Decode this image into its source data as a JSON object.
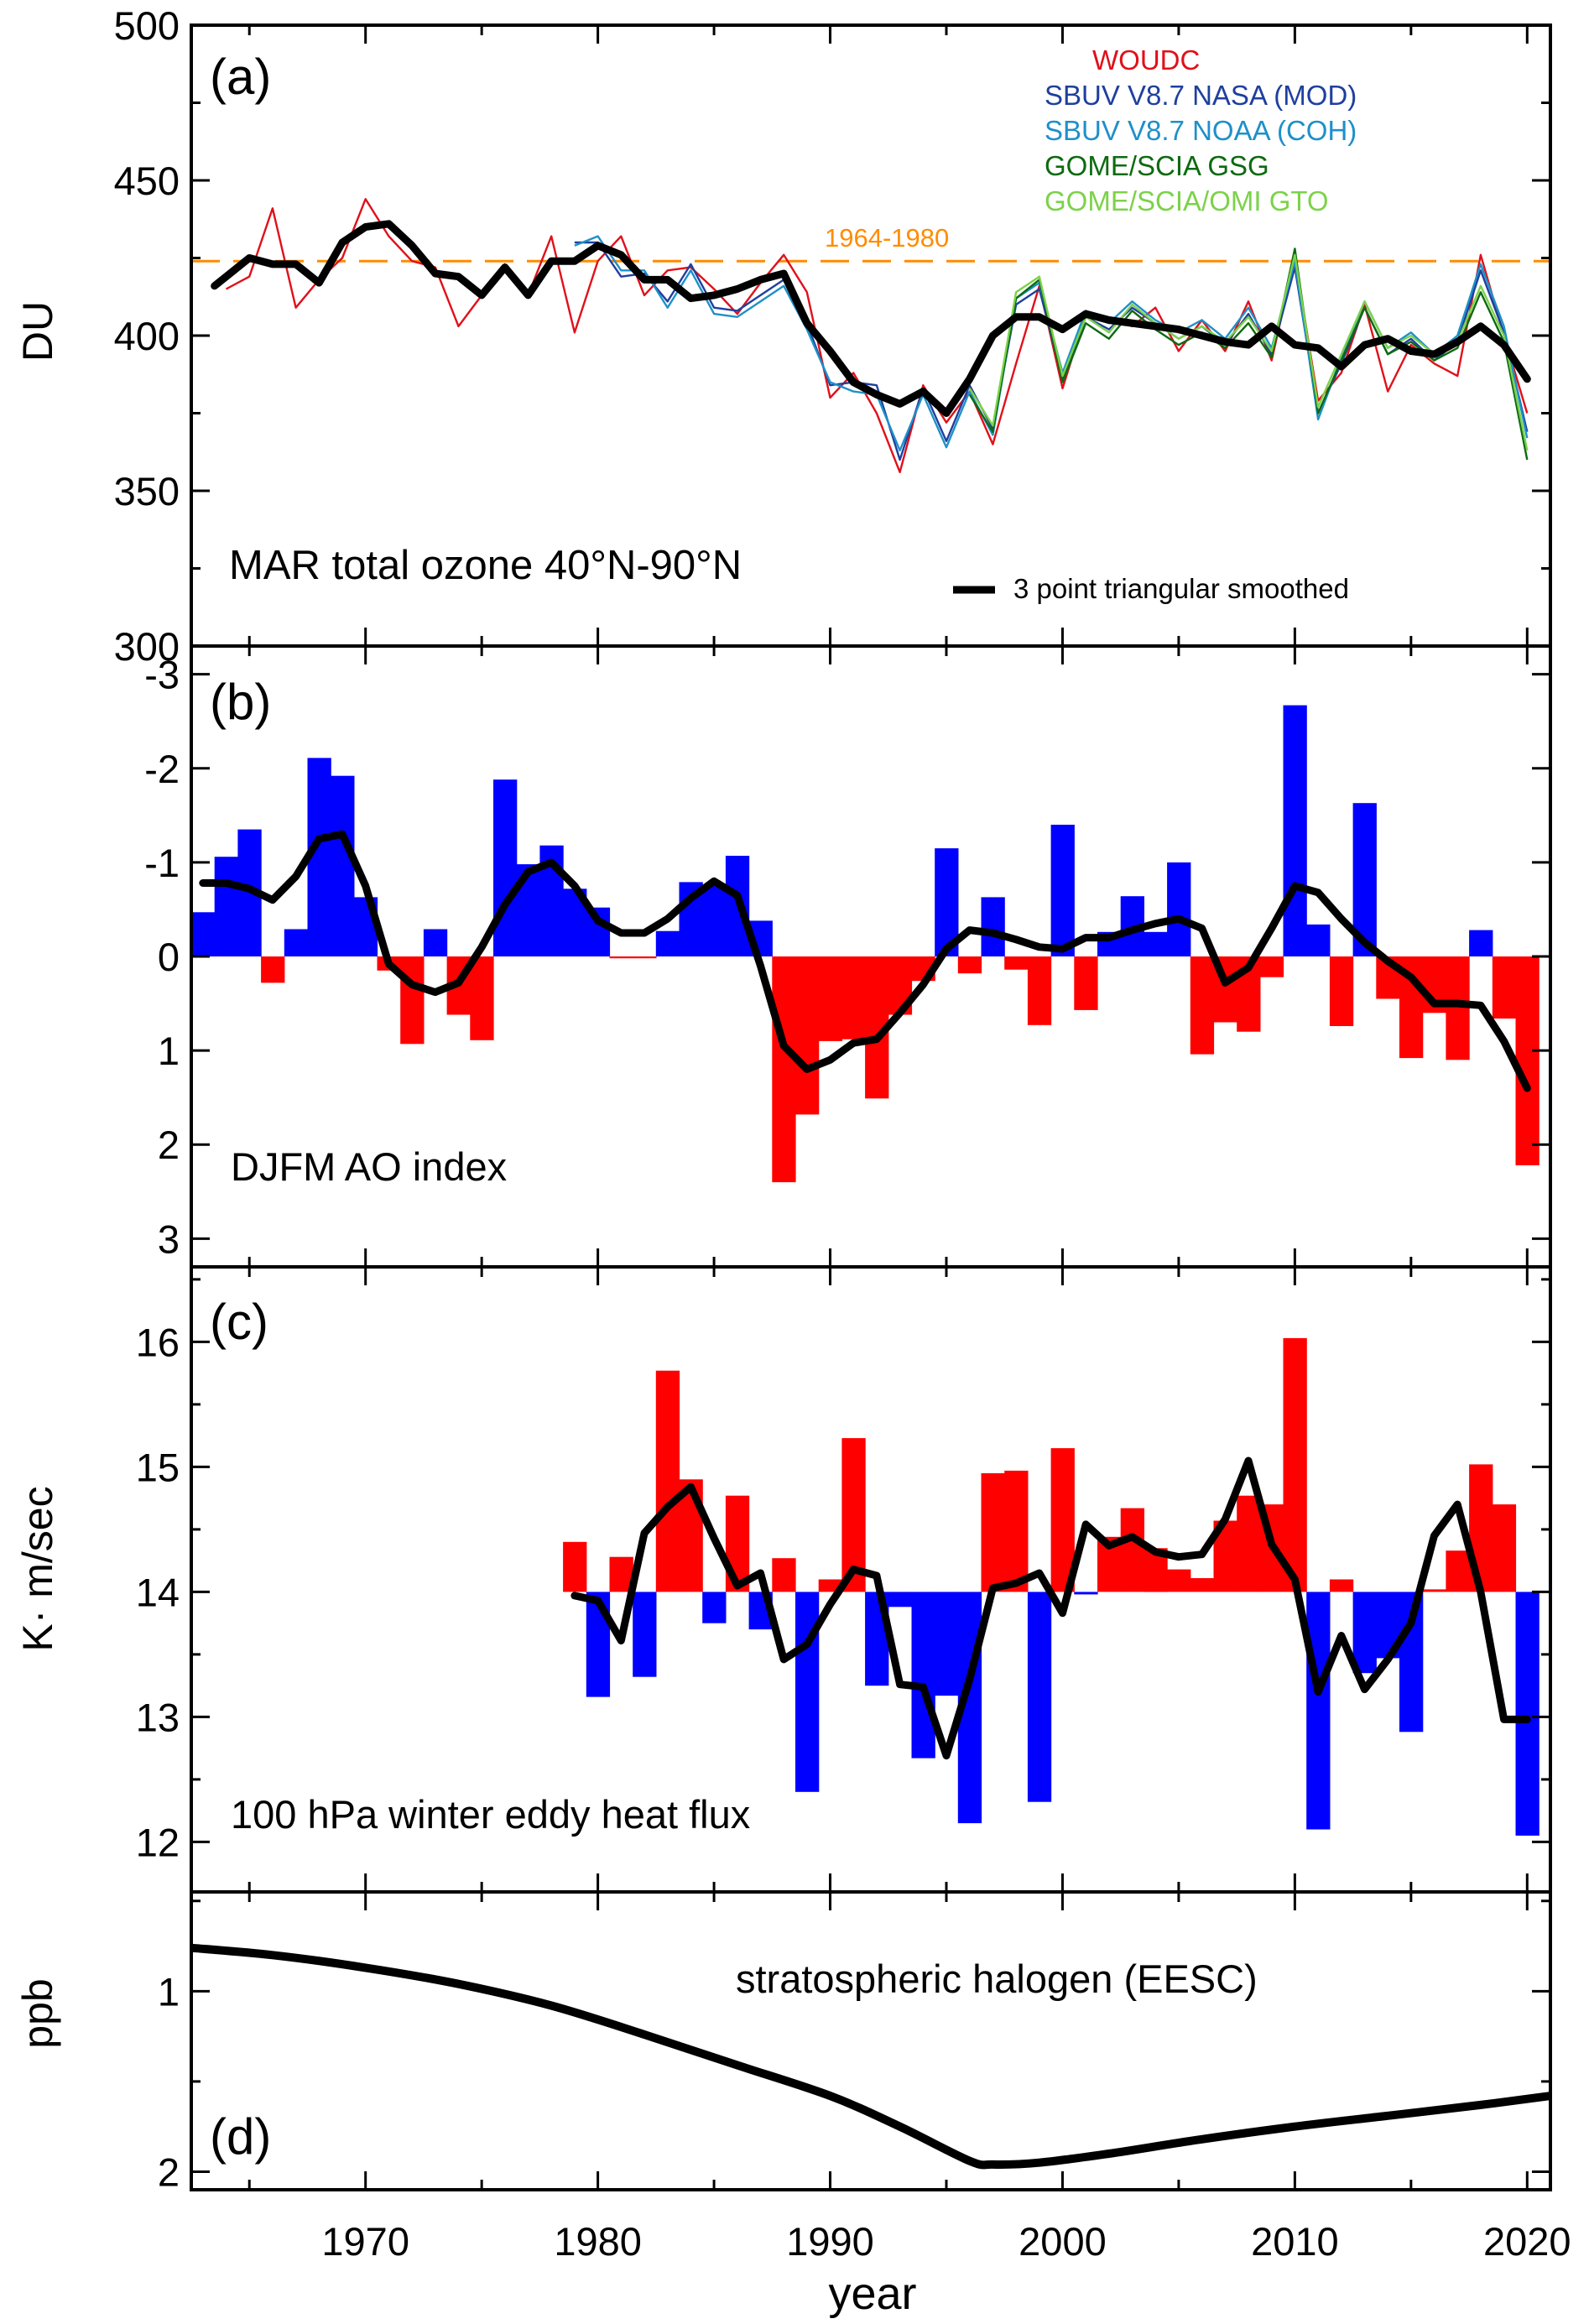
{
  "figure": {
    "xlabel": "year",
    "xlim": [
      1962.5,
      2021
    ],
    "xticks": [
      1970,
      1980,
      1990,
      2000,
      2010,
      2020
    ],
    "colors": {
      "woudc": "#e0101a",
      "sbuv_nasa": "#1f3f9e",
      "sbuv_noaa": "#1e90c8",
      "gsg": "#0d6a10",
      "gto": "#7cd24a",
      "baseline": "#ff8c00",
      "positive_bar": "#ff0000",
      "negative_bar": "#0000ff",
      "smoothed": "#000000"
    }
  },
  "chart_data": [
    {
      "panel": "(a)",
      "type": "line",
      "title": "MAR total ozone  40°N-90°N",
      "ylabel": "DU",
      "ylim": [
        300,
        500
      ],
      "yticks": [
        300,
        350,
        400,
        450,
        500
      ],
      "baseline": {
        "label": "1964-1980",
        "value": 424
      },
      "smooth_label": "3 point triangular smoothed",
      "series": [
        {
          "name": "WOUDC",
          "color": "woudc",
          "x": [
            1964,
            1965,
            1966,
            1967,
            1968,
            1969,
            1970,
            1971,
            1972,
            1973,
            1974,
            1975,
            1976,
            1977,
            1978,
            1979,
            1980,
            1981,
            1982,
            1983,
            1984,
            1985,
            1986,
            1987,
            1988,
            1989,
            1990,
            1991,
            1992,
            1993,
            1994,
            1995,
            1996,
            1997,
            1998,
            1999,
            2000,
            2001,
            2002,
            2003,
            2004,
            2005,
            2006,
            2007,
            2008,
            2009,
            2010,
            2011,
            2012,
            2013,
            2014,
            2015,
            2016,
            2017,
            2018,
            2019,
            2020
          ],
          "y": [
            415,
            419,
            441,
            409,
            418,
            425,
            444,
            432,
            424,
            422,
            403,
            413,
            423,
            413,
            432,
            401,
            424,
            432,
            413,
            421,
            422,
            415,
            407,
            417,
            426,
            414,
            380,
            388,
            375,
            356,
            384,
            372,
            382,
            365,
            391,
            416,
            383,
            407,
            405,
            403,
            409,
            395,
            405,
            395,
            411,
            392,
            425,
            379,
            388,
            410,
            382,
            397,
            391,
            387,
            426,
            400,
            375
          ]
        },
        {
          "name": "SBUV V8.7 NASA (MOD)",
          "color": "sbuv_nasa",
          "x": [
            1979,
            1980,
            1981,
            1982,
            1983,
            1984,
            1985,
            1986,
            1987,
            1988,
            1989,
            1990,
            1991,
            1992,
            1993,
            1994,
            1995,
            1996,
            1997,
            1998,
            1999,
            2000,
            2001,
            2002,
            2003,
            2004,
            2005,
            2006,
            2007,
            2008,
            2009,
            2010,
            2011,
            2012,
            2013,
            2014,
            2015,
            2016,
            2017,
            2018,
            2019,
            2020
          ],
          "y": [
            430,
            430,
            419,
            420,
            411,
            423,
            409,
            408,
            413,
            418,
            404,
            384,
            385,
            384,
            360,
            383,
            366,
            384,
            370,
            410,
            415,
            386,
            406,
            402,
            409,
            404,
            399,
            403,
            397,
            407,
            394,
            422,
            375,
            391,
            409,
            394,
            399,
            392,
            398,
            421,
            401,
            369
          ]
        },
        {
          "name": "SBUV V8.7 NOAA (COH)",
          "color": "sbuv_noaa",
          "x": [
            1979,
            1980,
            1981,
            1982,
            1983,
            1984,
            1985,
            1986,
            1987,
            1988,
            1989,
            1990,
            1991,
            1992,
            1993,
            1994,
            1995,
            1996,
            1997,
            1998,
            1999,
            2000,
            2001,
            2002,
            2003,
            2004,
            2005,
            2006,
            2007,
            2008,
            2009,
            2010,
            2011,
            2012,
            2013,
            2014,
            2015,
            2016,
            2017,
            2018,
            2019,
            2020
          ],
          "y": [
            429,
            432,
            421,
            421,
            409,
            421,
            407,
            406,
            411,
            416,
            402,
            385,
            382,
            381,
            363,
            381,
            364,
            382,
            368,
            412,
            417,
            388,
            408,
            404,
            411,
            405,
            401,
            405,
            399,
            409,
            396,
            424,
            373,
            393,
            411,
            396,
            401,
            394,
            400,
            423,
            403,
            367
          ]
        },
        {
          "name": "GOME/SCIA GSG",
          "color": "gsg",
          "x": [
            1996,
            1997,
            1998,
            1999,
            2000,
            2001,
            2002,
            2003,
            2004,
            2005,
            2006,
            2007,
            2008,
            2009,
            2010,
            2011,
            2012,
            2013,
            2014,
            2015,
            2016,
            2017,
            2018,
            2019,
            2020
          ],
          "y": [
            381,
            369,
            412,
            418,
            385,
            404,
            399,
            408,
            402,
            397,
            401,
            396,
            404,
            393,
            428,
            375,
            392,
            409,
            394,
            398,
            392,
            396,
            414,
            398,
            360
          ]
        },
        {
          "name": "GOME/SCIA/OMI GTO",
          "color": "gto",
          "x": [
            1996,
            1997,
            1998,
            1999,
            2000,
            2001,
            2002,
            2003,
            2004,
            2005,
            2006,
            2007,
            2008,
            2009,
            2010,
            2011,
            2012,
            2013,
            2014,
            2015,
            2016,
            2017,
            2018,
            2019,
            2020
          ],
          "y": [
            383,
            371,
            414,
            419,
            387,
            406,
            401,
            410,
            404,
            399,
            403,
            398,
            406,
            395,
            426,
            377,
            394,
            411,
            396,
            400,
            394,
            398,
            416,
            400,
            363
          ]
        }
      ],
      "smoothed": {
        "x": [
          1963.5,
          1964,
          1965,
          1966,
          1967,
          1968,
          1969,
          1970,
          1971,
          1972,
          1973,
          1974,
          1975,
          1976,
          1977,
          1978,
          1979,
          1980,
          1981,
          1982,
          1983,
          1984,
          1985,
          1986,
          1987,
          1988,
          1989,
          1990,
          1991,
          1992,
          1993,
          1994,
          1995,
          1996,
          1997,
          1998,
          1999,
          2000,
          2001,
          2002,
          2003,
          2004,
          2005,
          2006,
          2007,
          2008,
          2009,
          2010,
          2011,
          2012,
          2013,
          2014,
          2015,
          2016,
          2017,
          2018,
          2019,
          2020
        ],
        "y": [
          416,
          419,
          425,
          423,
          423,
          417,
          430,
          435,
          436,
          429,
          420,
          419,
          413,
          422,
          413,
          424,
          424,
          429,
          426,
          418,
          418,
          412,
          413,
          415,
          418,
          420,
          404,
          395,
          385,
          381,
          378,
          382,
          375,
          386,
          400,
          406,
          406,
          402,
          407,
          405,
          404,
          403,
          402,
          400,
          398,
          397,
          403,
          397,
          396,
          390,
          397,
          399,
          395,
          394,
          398,
          403,
          397,
          386
        ]
      }
    },
    {
      "panel": "(b)",
      "type": "bar",
      "title": "DJFM AO index",
      "ylim": [
        3.3,
        -3.3
      ],
      "yticks": [
        3,
        2,
        1,
        0,
        -1,
        -2,
        -3
      ],
      "ytick_labels": [
        "3",
        "2",
        "1",
        "0",
        "-1",
        "-2",
        "-3"
      ],
      "x": [
        1963,
        1964,
        1965,
        1966,
        1967,
        1968,
        1969,
        1970,
        1971,
        1972,
        1973,
        1974,
        1975,
        1976,
        1977,
        1978,
        1979,
        1980,
        1981,
        1982,
        1983,
        1984,
        1985,
        1986,
        1987,
        1988,
        1989,
        1990,
        1991,
        1992,
        1993,
        1994,
        1995,
        1996,
        1997,
        1998,
        1999,
        2000,
        2001,
        2002,
        2003,
        2004,
        2005,
        2006,
        2007,
        2008,
        2009,
        2010,
        2011,
        2012,
        2013,
        2014,
        2015,
        2016,
        2017,
        2018,
        2019,
        2020
      ],
      "values": [
        -0.47,
        -1.06,
        -1.35,
        0.28,
        -0.29,
        -2.11,
        -1.92,
        -0.63,
        0.15,
        0.93,
        -0.29,
        0.62,
        0.89,
        -1.88,
        -0.98,
        -1.18,
        -0.72,
        -0.52,
        0.02,
        0.02,
        -0.27,
        -0.79,
        -0.76,
        -1.07,
        -0.38,
        2.4,
        1.68,
        0.9,
        0.88,
        1.51,
        0.62,
        0.26,
        -1.15,
        0.18,
        -0.63,
        0.14,
        0.73,
        -1.4,
        0.57,
        -0.26,
        -0.64,
        -0.26,
        -1.0,
        1.04,
        0.7,
        0.8,
        0.22,
        -2.67,
        -0.34,
        0.74,
        -1.63,
        0.45,
        1.08,
        0.6,
        1.1,
        -0.28,
        0.66,
        2.22
      ],
      "smoothed": {
        "x": [
          1963,
          1964,
          1965,
          1966,
          1967,
          1968,
          1969,
          1970,
          1971,
          1972,
          1973,
          1974,
          1975,
          1976,
          1977,
          1978,
          1979,
          1980,
          1981,
          1982,
          1983,
          1984,
          1985,
          1986,
          1987,
          1988,
          1989,
          1990,
          1991,
          1992,
          1993,
          1994,
          1995,
          1996,
          1997,
          1998,
          1999,
          2000,
          2001,
          2002,
          2003,
          2004,
          2005,
          2006,
          2007,
          2008,
          2009,
          2010,
          2011,
          2012,
          2013,
          2014,
          2015,
          2016,
          2017,
          2018,
          2019,
          2020
        ],
        "y": [
          -0.78,
          -0.78,
          -0.72,
          -0.6,
          -0.85,
          -1.25,
          -1.3,
          -0.75,
          0.08,
          0.3,
          0.38,
          0.28,
          -0.1,
          -0.55,
          -0.9,
          -1.0,
          -0.75,
          -0.38,
          -0.25,
          -0.25,
          -0.4,
          -0.62,
          -0.8,
          -0.65,
          0.1,
          0.95,
          1.2,
          1.1,
          0.92,
          0.88,
          0.6,
          0.3,
          -0.08,
          -0.28,
          -0.25,
          -0.18,
          -0.1,
          -0.08,
          -0.2,
          -0.2,
          -0.28,
          -0.35,
          -0.4,
          -0.3,
          0.28,
          0.12,
          -0.3,
          -0.75,
          -0.68,
          -0.4,
          -0.15,
          0.05,
          0.22,
          0.5,
          0.5,
          0.52,
          0.9,
          1.4
        ]
      }
    },
    {
      "panel": "(c)",
      "type": "bar",
      "title": "100 hPa winter eddy heat flux",
      "ylabel": "K· m/sec",
      "ylim": [
        11.6,
        16.6
      ],
      "yticks": [
        12,
        13,
        14,
        15,
        16
      ],
      "baseline": 14,
      "x": [
        1979,
        1980,
        1981,
        1982,
        1983,
        1984,
        1985,
        1986,
        1987,
        1988,
        1989,
        1990,
        1991,
        1992,
        1993,
        1994,
        1995,
        1996,
        1997,
        1998,
        1999,
        2000,
        2001,
        2002,
        2003,
        2004,
        2005,
        2006,
        2007,
        2008,
        2009,
        2010,
        2011,
        2012,
        2013,
        2014,
        2015,
        2016,
        2017,
        2018,
        2019,
        2020
      ],
      "values": [
        14.4,
        13.16,
        14.28,
        13.32,
        15.77,
        14.9,
        13.75,
        14.77,
        13.7,
        14.27,
        12.4,
        14.1,
        15.23,
        13.25,
        13.88,
        12.67,
        13.17,
        12.15,
        14.95,
        14.97,
        12.32,
        15.15,
        13.98,
        14.44,
        14.67,
        14.35,
        14.18,
        14.11,
        14.57,
        14.77,
        14.7,
        16.03,
        12.1,
        14.1,
        13.35,
        13.47,
        12.88,
        14.02,
        14.33,
        15.02,
        14.7,
        12.05
      ],
      "smoothed": {
        "x": [
          1979,
          1980,
          1981,
          1982,
          1983,
          1984,
          1985,
          1986,
          1987,
          1988,
          1989,
          1990,
          1991,
          1992,
          1993,
          1994,
          1995,
          1996,
          1997,
          1998,
          1999,
          2000,
          2001,
          2002,
          2003,
          2004,
          2005,
          2006,
          2007,
          2008,
          2009,
          2010,
          2011,
          2012,
          2013,
          2014,
          2015,
          2016,
          2017,
          2018,
          2019,
          2020
        ],
        "y": [
          13.97,
          13.93,
          13.61,
          14.47,
          14.68,
          14.84,
          14.43,
          14.05,
          14.15,
          13.46,
          13.58,
          13.9,
          14.18,
          14.13,
          13.26,
          13.24,
          12.69,
          13.3,
          14.03,
          14.07,
          14.15,
          13.83,
          14.54,
          14.37,
          14.44,
          14.32,
          14.28,
          14.3,
          14.58,
          15.05,
          14.38,
          14.1,
          13.2,
          13.65,
          13.22,
          13.46,
          13.75,
          14.45,
          14.7,
          14.0,
          12.98,
          12.98
        ]
      }
    },
    {
      "panel": "(d)",
      "type": "line",
      "title": "stratospheric halogen (EESC)",
      "ylabel": "ppb",
      "ylim": [
        2.1,
        0.45
      ],
      "yticks": [
        1,
        2
      ],
      "minor_yticks": [
        0.5,
        1.5
      ],
      "series": [
        {
          "name": "",
          "color": "smoothed",
          "x": [
            1962.5,
            1966,
            1970,
            1974,
            1978,
            1982,
            1986,
            1990,
            1993,
            1996,
            1997,
            1999,
            2002,
            2006,
            2010,
            2014,
            2018,
            2021
          ],
          "y": [
            0.76,
            0.8,
            0.87,
            0.96,
            1.08,
            1.24,
            1.41,
            1.58,
            1.75,
            1.94,
            1.96,
            1.95,
            1.9,
            1.82,
            1.75,
            1.69,
            1.63,
            1.58
          ]
        }
      ]
    }
  ],
  "legend": {
    "entries": [
      {
        "label": "WOUDC",
        "color": "woudc"
      },
      {
        "label": "SBUV V8.7 NASA (MOD)",
        "color": "sbuv_nasa"
      },
      {
        "label": "SBUV V8.7 NOAA (COH)",
        "color": "sbuv_noaa"
      },
      {
        "label": "GOME/SCIA GSG",
        "color": "gsg"
      },
      {
        "label": "GOME/SCIA/OMI GTO",
        "color": "gto"
      }
    ]
  }
}
